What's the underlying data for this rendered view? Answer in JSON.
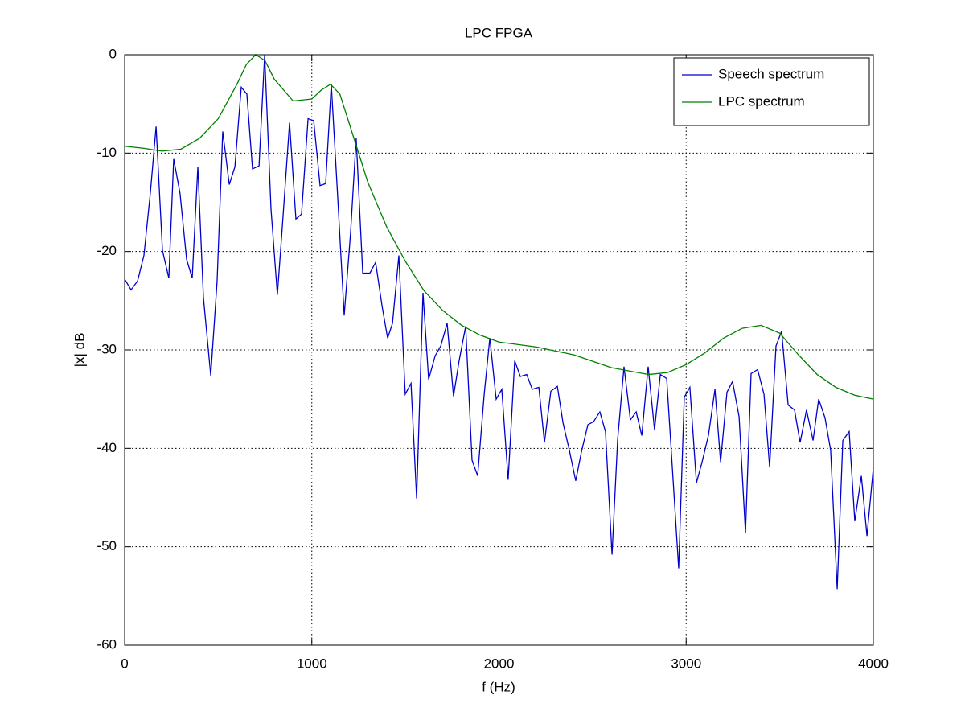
{
  "chart_data": {
    "type": "line",
    "title": "LPC FPGA",
    "x_label": "f (Hz)",
    "y_label": "|x| dB",
    "xlim": [
      0,
      4000
    ],
    "ylim": [
      -60,
      0
    ],
    "xticks": [
      0,
      1000,
      2000,
      3000,
      4000
    ],
    "yticks": [
      -60,
      -50,
      -40,
      -30,
      -20,
      -10,
      0
    ],
    "grid": true,
    "legend_position": "upper right",
    "series": [
      {
        "name": "Speech spectrum",
        "color": "#0000cc",
        "x": [
          0,
          34,
          69,
          103,
          137,
          168,
          202,
          236,
          262,
          296,
          331,
          361,
          391,
          421,
          460,
          494,
          524,
          559,
          589,
          623,
          653,
          683,
          718,
          748,
          782,
          816,
          846,
          881,
          915,
          945,
          980,
          1010,
          1044,
          1074,
          1104,
          1139,
          1173,
          1207,
          1237,
          1272,
          1310,
          1341,
          1375,
          1405,
          1431,
          1465,
          1499,
          1530,
          1560,
          1594,
          1624,
          1659,
          1689,
          1723,
          1757,
          1787,
          1822,
          1856,
          1886,
          1921,
          1951,
          1985,
          2015,
          2049,
          2084,
          2114,
          2148,
          2178,
          2213,
          2243,
          2277,
          2312,
          2342,
          2376,
          2410,
          2440,
          2475,
          2505,
          2539,
          2569,
          2604,
          2634,
          2668,
          2702,
          2733,
          2763,
          2797,
          2831,
          2862,
          2896,
          2926,
          2960,
          2990,
          3020,
          3055,
          3085,
          3119,
          3154,
          3184,
          3218,
          3248,
          3283,
          3317,
          3347,
          3382,
          3416,
          3446,
          3480,
          3510,
          3545,
          3579,
          3609,
          3643,
          3678,
          3708,
          3742,
          3772,
          3807,
          3837,
          3871,
          3901,
          3936,
          3966,
          4000
        ],
        "values": [
          -22.8,
          -23.9,
          -23,
          -20.4,
          -14.1,
          -7.3,
          -19.9,
          -22.7,
          -10.6,
          -14.1,
          -20.8,
          -22.7,
          -11.4,
          -24.7,
          -32.6,
          -23,
          -7.8,
          -13.2,
          -11.4,
          -3.3,
          -4,
          -11.6,
          -11.3,
          0,
          -15.7,
          -24.4,
          -16.5,
          -6.9,
          -16.7,
          -16.2,
          -6.5,
          -6.7,
          -13.3,
          -13.1,
          -3,
          -14.7,
          -26.5,
          -18.1,
          -8.5,
          -22.2,
          -22.2,
          -21.1,
          -25.5,
          -28.8,
          -27.3,
          -20.4,
          -34.5,
          -33.4,
          -45.1,
          -24.2,
          -33,
          -30.6,
          -29.6,
          -27.3,
          -34.7,
          -31.1,
          -27.6,
          -41.2,
          -42.8,
          -34.5,
          -28.8,
          -35,
          -34,
          -43.2,
          -31.1,
          -32.7,
          -32.5,
          -34,
          -33.8,
          -39.4,
          -34.2,
          -33.7,
          -37.4,
          -40.2,
          -43.3,
          -40.4,
          -37.6,
          -37.3,
          -36.3,
          -38.3,
          -50.8,
          -39.1,
          -31.7,
          -37.1,
          -36.3,
          -38.7,
          -31.7,
          -38.1,
          -32.5,
          -32.9,
          -41.9,
          -52.2,
          -34.8,
          -33.8,
          -43.5,
          -41.4,
          -38.7,
          -34,
          -41.4,
          -34.3,
          -33.2,
          -36.8,
          -48.6,
          -32.4,
          -32,
          -34.5,
          -41.9,
          -29.6,
          -28.1,
          -35.6,
          -36.1,
          -39.4,
          -36.1,
          -39.2,
          -35,
          -36.9,
          -40.2,
          -54.3,
          -39.2,
          -38.3,
          -47.4,
          -42.8,
          -48.9,
          -42
        ]
      },
      {
        "name": "LPC spectrum",
        "color": "#007f00",
        "x": [
          0,
          100,
          200,
          300,
          400,
          500,
          600,
          650,
          700,
          750,
          800,
          900,
          1000,
          1050,
          1100,
          1150,
          1200,
          1300,
          1400,
          1500,
          1600,
          1700,
          1800,
          1900,
          2000,
          2200,
          2400,
          2600,
          2800,
          2900,
          3000,
          3100,
          3200,
          3300,
          3400,
          3500,
          3600,
          3700,
          3800,
          3900,
          4000
        ],
        "values": [
          -9.3,
          -9.5,
          -9.8,
          -9.6,
          -8.5,
          -6.5,
          -3,
          -1,
          0,
          -0.6,
          -2.5,
          -4.7,
          -4.5,
          -3.6,
          -3,
          -4,
          -7,
          -13,
          -17.5,
          -21,
          -24,
          -26,
          -27.5,
          -28.5,
          -29.2,
          -29.7,
          -30.5,
          -31.8,
          -32.5,
          -32.3,
          -31.5,
          -30.3,
          -28.8,
          -27.8,
          -27.5,
          -28.3,
          -30.5,
          -32.5,
          -33.8,
          -34.6,
          -35
        ]
      }
    ]
  }
}
